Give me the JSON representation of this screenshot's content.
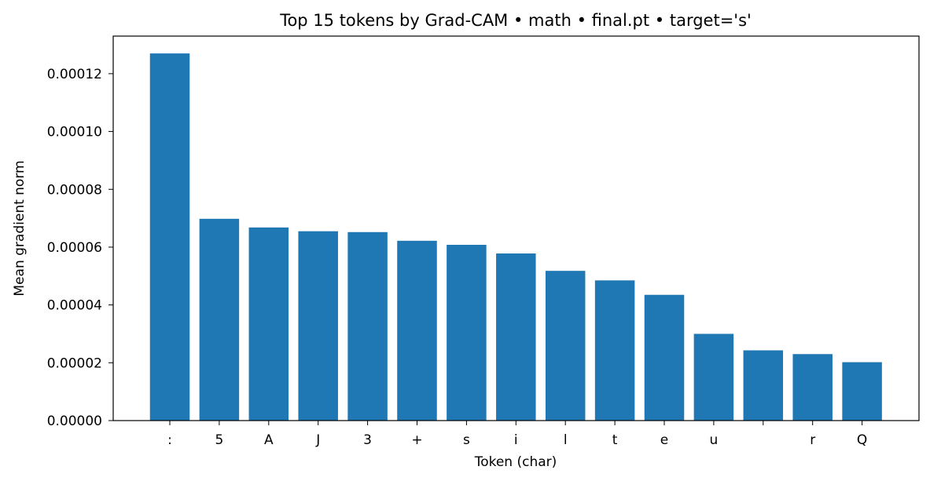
{
  "chart_data": {
    "type": "bar",
    "title": "Top 15 tokens by Grad-CAM • math • final.pt • target='s'",
    "xlabel": "Token (char)",
    "ylabel": "Mean gradient norm",
    "categories": [
      ":",
      "5",
      "A",
      "J",
      "3",
      "+",
      "s",
      "i",
      "l",
      "t",
      "e",
      "u",
      " ",
      "r",
      "Q"
    ],
    "values": [
      0.000127,
      6.98e-05,
      6.68e-05,
      6.55e-05,
      6.52e-05,
      6.22e-05,
      6.08e-05,
      5.78e-05,
      5.18e-05,
      4.85e-05,
      4.35e-05,
      3e-05,
      2.43e-05,
      2.3e-05,
      2.02e-05
    ],
    "ylim": [
      0,
      0.000133
    ],
    "yticks": [
      "0.00000",
      "0.00002",
      "0.00004",
      "0.00006",
      "0.00008",
      "0.00010",
      "0.00012"
    ],
    "ytick_values": [
      0,
      2e-05,
      4e-05,
      6e-05,
      8e-05,
      0.0001,
      0.00012
    ],
    "bar_color": "#1f77b4",
    "grid": false,
    "legend": "none"
  }
}
